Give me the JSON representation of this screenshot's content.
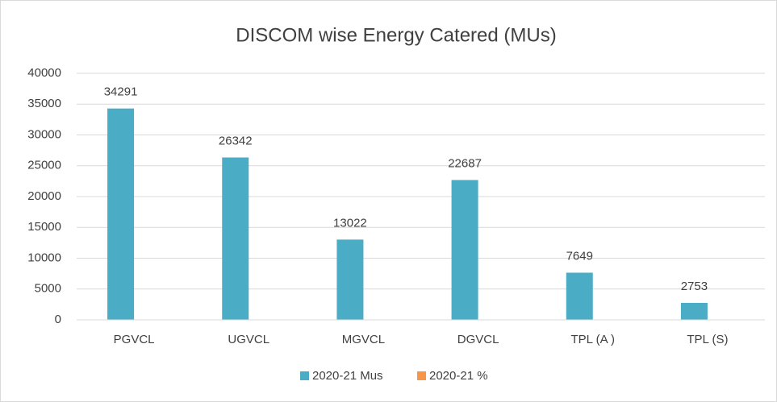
{
  "chart_data": {
    "type": "bar",
    "title": "DISCOM wise Energy Catered (MUs)",
    "categories": [
      "PGVCL",
      "UGVCL",
      "MGVCL",
      "DGVCL",
      "TPL (A )",
      "TPL (S)"
    ],
    "series": [
      {
        "name": "2020-21 Mus",
        "color": "#4bacc6",
        "values": [
          34291,
          26342,
          13022,
          22687,
          7649,
          2753
        ]
      },
      {
        "name": "2020-21 %",
        "color": "#f79646",
        "values": [
          null,
          null,
          null,
          null,
          null,
          null
        ]
      }
    ],
    "ylim": [
      0,
      40000
    ],
    "yticks": [
      0,
      5000,
      10000,
      15000,
      20000,
      25000,
      30000,
      35000,
      40000
    ],
    "grid": true,
    "legend": "bottom"
  }
}
